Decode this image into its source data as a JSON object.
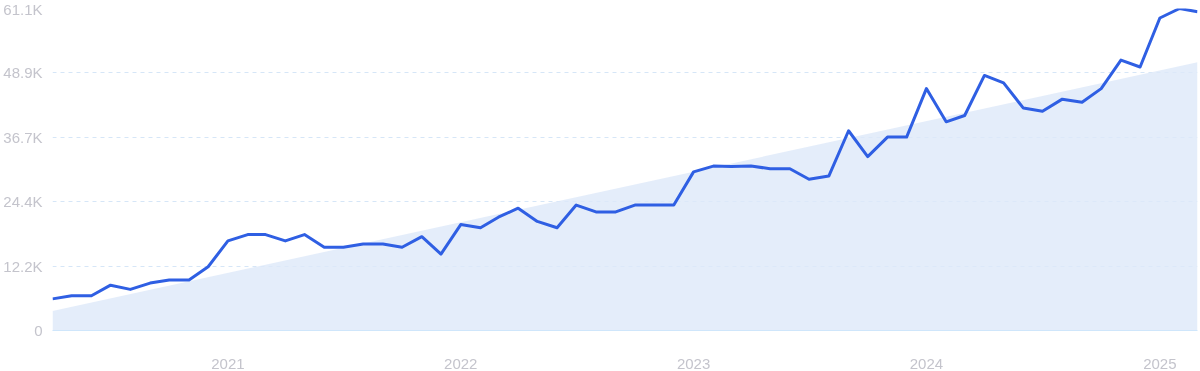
{
  "chart_data": {
    "type": "line",
    "x": [
      "2020-04",
      "2020-05",
      "2020-06",
      "2020-07",
      "2020-08",
      "2020-09",
      "2020-10",
      "2020-11",
      "2020-12",
      "2021-01",
      "2021-02",
      "2021-03",
      "2021-04",
      "2021-05",
      "2021-06",
      "2021-07",
      "2021-08",
      "2021-09",
      "2021-10",
      "2021-11",
      "2021-12",
      "2022-01",
      "2022-02",
      "2022-03",
      "2022-04",
      "2022-05",
      "2022-06",
      "2022-07",
      "2022-08",
      "2022-09",
      "2022-10",
      "2022-11",
      "2022-12",
      "2023-01",
      "2023-02",
      "2023-03",
      "2023-04",
      "2023-05",
      "2023-06",
      "2023-07",
      "2023-08",
      "2023-09",
      "2023-10",
      "2023-11",
      "2023-12",
      "2024-01",
      "2024-02",
      "2024-03",
      "2024-04",
      "2024-05",
      "2024-06",
      "2024-07",
      "2024-08",
      "2024-09",
      "2024-10",
      "2024-11",
      "2024-12",
      "2025-01",
      "2025-02",
      "2025-03"
    ],
    "series": [
      {
        "type": "area",
        "color": "#dde9f9",
        "x": [
          "2020-04",
          "2025-03"
        ],
        "values": [
          3700,
          50900
        ]
      },
      {
        "color": "#2f5fe3",
        "values": [
          6000,
          6600,
          6600,
          8600,
          7800,
          9000,
          9600,
          9600,
          12100,
          17000,
          18200,
          18200,
          17000,
          18200,
          15800,
          15800,
          16400,
          16400,
          15800,
          17800,
          14500,
          20100,
          19500,
          21500,
          23200,
          20700,
          19500,
          23800,
          22500,
          22500,
          23800,
          23800,
          23800,
          30100,
          31200,
          31100,
          31200,
          30700,
          30700,
          28700,
          29300,
          37900,
          33000,
          36700,
          36700,
          45900,
          39600,
          40800,
          48400,
          47000,
          42200,
          41600,
          43900,
          43300,
          45900,
          51300,
          50000,
          59300,
          61100,
          60500
        ]
      }
    ],
    "xlim": [
      "2020-04",
      "2025-03"
    ],
    "xticks": [
      {
        "value": "2021-01",
        "label": "2021"
      },
      {
        "value": "2022-01",
        "label": "2022"
      },
      {
        "value": "2023-01",
        "label": "2023"
      },
      {
        "value": "2024-01",
        "label": "2024"
      },
      {
        "value": "2025-01",
        "label": "2025"
      }
    ],
    "ylim": [
      0,
      61100
    ],
    "yticks": [
      0,
      {
        "value": 12200,
        "label": "12.2K"
      },
      {
        "value": 24400,
        "label": "24.4K"
      },
      {
        "value": 36700,
        "label": "36.7K"
      },
      {
        "value": 48900,
        "label": "48.9K"
      },
      {
        "value": 61100,
        "label": "61.1K"
      }
    ],
    "grid": "y",
    "marker": "none",
    "line_style": "solid"
  }
}
